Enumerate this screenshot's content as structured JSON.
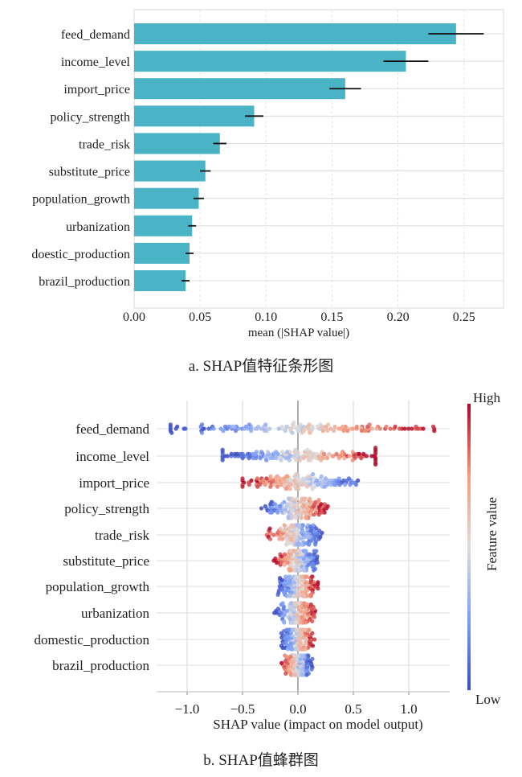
{
  "chart_data": [
    {
      "type": "bar",
      "orientation": "horizontal",
      "title": "",
      "caption": "a. SHAP值特征条形图",
      "xlabel": "mean (|SHAP value|)",
      "ylabel": "",
      "xlim": [
        0,
        0.28
      ],
      "xticks": [
        0.0,
        0.05,
        0.1,
        0.15,
        0.2,
        0.25
      ],
      "xtick_labels": [
        "0.00",
        "0.05",
        "0.10",
        "0.15",
        "0.20",
        "0.25"
      ],
      "grid": true,
      "bar_color": "#4bb3c6",
      "categories": [
        "feed_demand",
        "income_level",
        "import_price",
        "policy_strength",
        "trade_risk",
        "substitute_price",
        "population_growth",
        "urbanization",
        "doestic_production",
        "brazil_production"
      ],
      "values": [
        0.244,
        0.206,
        0.16,
        0.091,
        0.065,
        0.054,
        0.049,
        0.044,
        0.042,
        0.039
      ],
      "errors": [
        0.021,
        0.017,
        0.012,
        0.007,
        0.005,
        0.004,
        0.004,
        0.003,
        0.003,
        0.003
      ]
    },
    {
      "type": "scatter",
      "subtype": "beeswarm",
      "title": "",
      "caption": "b. SHAP值蜂群图",
      "xlabel": "SHAP value (impact on model output)",
      "ylabel": "",
      "xlim": [
        -1.25,
        1.35
      ],
      "xticks": [
        -1.0,
        -0.5,
        0.0,
        0.5,
        1.0
      ],
      "xtick_labels": [
        "−1.0",
        "−0.5",
        "0.0",
        "0.5",
        "1.0"
      ],
      "grid": true,
      "colorbar": {
        "label": "Feature value",
        "high_label": "High",
        "low_label": "Low",
        "colormap": "coolwarm",
        "high_color": "#b40426",
        "mid_color": "#dddcdc",
        "low_color": "#3b4cc0",
        "placement": "right"
      },
      "categories": [
        "feed_demand",
        "income_level",
        "import_price",
        "policy_strength",
        "trade_risk",
        "substitute_price",
        "population_growth",
        "urbanization",
        "domestic_production",
        "brazil_production"
      ],
      "series": [
        {
          "name": "feed_demand",
          "min": -1.15,
          "max": 1.23,
          "spread": 0.5,
          "direction": "positive"
        },
        {
          "name": "income_level",
          "min": -0.68,
          "max": 0.7,
          "spread": 0.36,
          "direction": "positive"
        },
        {
          "name": "import_price",
          "min": -0.5,
          "max": 0.6,
          "spread": 0.25,
          "direction": "negative"
        },
        {
          "name": "policy_strength",
          "min": -0.33,
          "max": 0.27,
          "spread": 0.13,
          "direction": "positive"
        },
        {
          "name": "trade_risk",
          "min": -0.3,
          "max": 0.22,
          "spread": 0.1,
          "direction": "negative"
        },
        {
          "name": "substitute_price",
          "min": -0.22,
          "max": 0.2,
          "spread": 0.09,
          "direction": "negative"
        },
        {
          "name": "population_growth",
          "min": -0.18,
          "max": 0.18,
          "spread": 0.08,
          "direction": "positive"
        },
        {
          "name": "urbanization",
          "min": -0.22,
          "max": 0.17,
          "spread": 0.07,
          "direction": "positive"
        },
        {
          "name": "domestic_production",
          "min": -0.15,
          "max": 0.15,
          "spread": 0.07,
          "direction": "positive"
        },
        {
          "name": "brazil_production",
          "min": -0.15,
          "max": 0.13,
          "spread": 0.06,
          "direction": "negative"
        }
      ]
    }
  ]
}
